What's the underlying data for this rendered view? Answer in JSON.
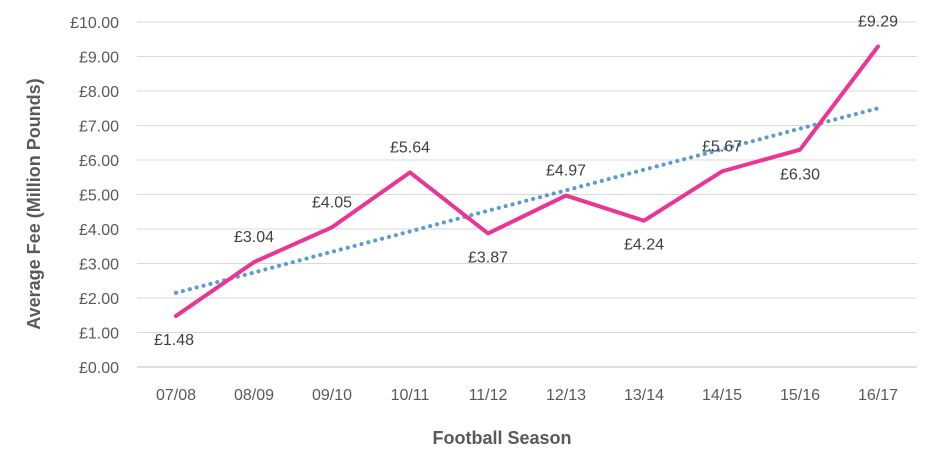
{
  "chart_data": {
    "type": "line",
    "categories": [
      "07/08",
      "08/09",
      "09/10",
      "10/11",
      "11/12",
      "12/13",
      "13/14",
      "14/15",
      "15/16",
      "16/17"
    ],
    "series": [
      {
        "values": [
          1.48,
          3.04,
          4.05,
          5.64,
          3.87,
          4.97,
          4.24,
          5.67,
          6.3,
          9.29
        ],
        "data_labels": [
          "£1.48",
          "£3.04",
          "£4.05",
          "£5.64",
          "£3.87",
          "£4.97",
          "£4.24",
          "£5.67",
          "£6.30",
          "£9.29"
        ],
        "color": "#ea3595",
        "style": "solid"
      },
      {
        "values": [
          2.15,
          2.74,
          3.34,
          3.93,
          4.53,
          5.12,
          5.72,
          6.31,
          6.91,
          7.5
        ],
        "color": "#5b9bd5",
        "style": "dotted",
        "kind": "linear trendline"
      }
    ],
    "ylim": [
      0,
      10
    ],
    "ystep": 1,
    "ytick_labels": [
      "£0.00",
      "£1.00",
      "£2.00",
      "£3.00",
      "£4.00",
      "£5.00",
      "£6.00",
      "£7.00",
      "£8.00",
      "£9.00",
      "£10.00"
    ],
    "xlabel": "Football Season",
    "ylabel": "Average Fee (Million Pounds)",
    "grid": true,
    "legend": "none"
  }
}
